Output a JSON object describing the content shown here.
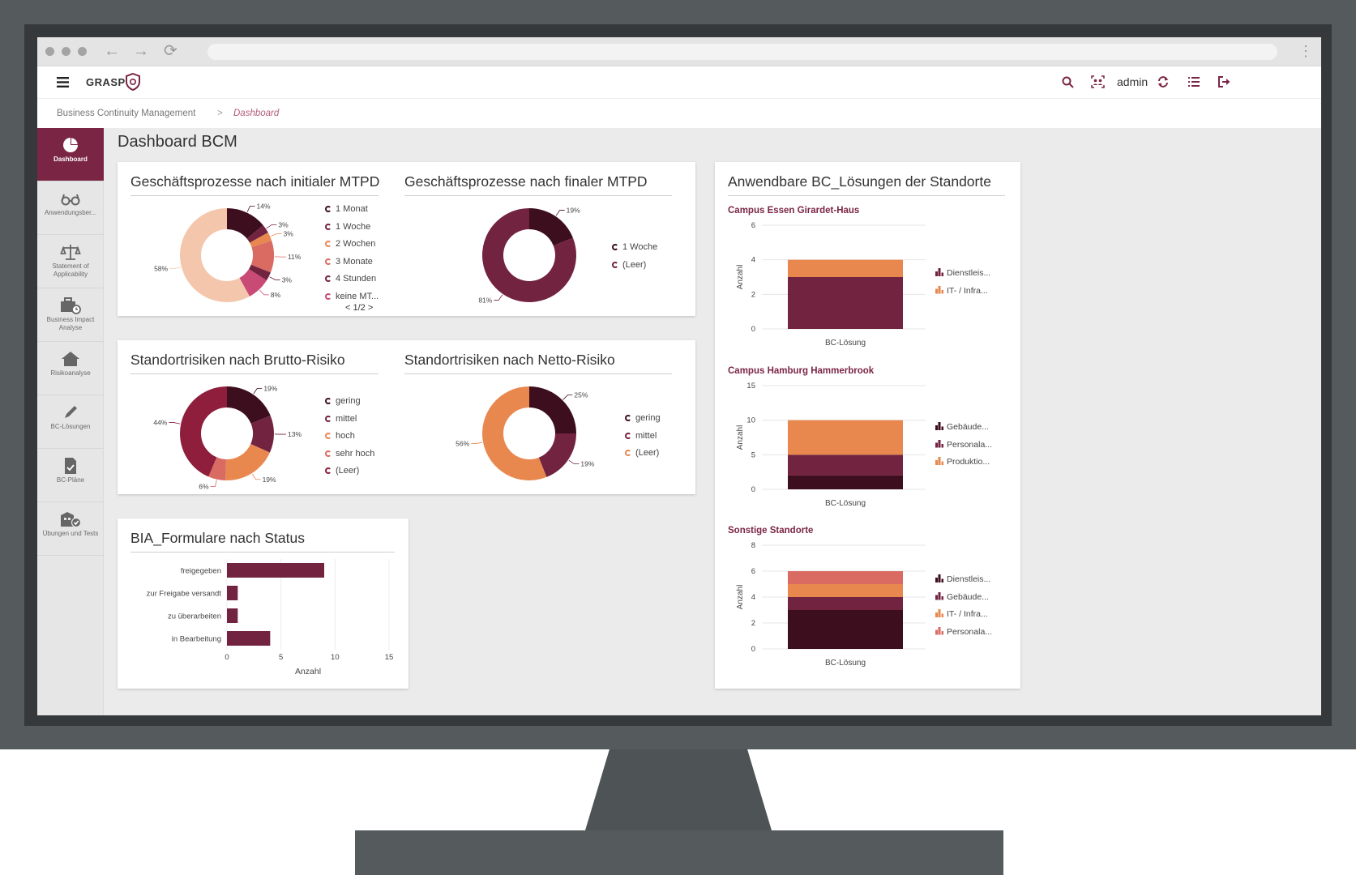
{
  "colors": {
    "c1": "#3d0e1d",
    "c2": "#722340",
    "c3": "#e8884f",
    "c4": "#d96b63",
    "c5": "#c84a75",
    "c6": "#f4c7ad",
    "accent": "#7b2545"
  },
  "app": {
    "logo": "GRASP",
    "user": "admin"
  },
  "icons": {
    "menu": "hamburger-menu-icon",
    "search": "search-icon",
    "users": "users-scan-icon",
    "refresh": "refresh-icon",
    "list": "list-icon",
    "logout": "logout-icon"
  },
  "breadcrumb": {
    "root": "Business Continuity Management",
    "sep": ">",
    "current": "Dashboard"
  },
  "sidebar": {
    "items": [
      {
        "label": "Dashboard",
        "icon": "pie-chart-icon"
      },
      {
        "label": "Anwendungsber...",
        "icon": "glasses-icon"
      },
      {
        "label": "Statement of Applicability",
        "icon": "scale-icon"
      },
      {
        "label": "Business Impact Analyse",
        "icon": "briefcase-clock-icon"
      },
      {
        "label": "Risikoanalyse",
        "icon": "house-icon"
      },
      {
        "label": "BC-Lösungen",
        "icon": "pencil-icon"
      },
      {
        "label": "BC-Pläne",
        "icon": "document-check-icon"
      },
      {
        "label": "Übungen und Tests",
        "icon": "building-check-icon"
      }
    ]
  },
  "page": {
    "title": "Dashboard BCM"
  },
  "donut1": {
    "title": "Geschäftsprozesse nach initialer MTPD",
    "pager": "1/2",
    "slices": [
      {
        "label": "1 Monat",
        "value": 14,
        "text": "14%",
        "color": "#3d0e1d"
      },
      {
        "label": "1 Woche",
        "value": 3,
        "text": "3%",
        "color": "#722340"
      },
      {
        "label": "2 Wochen",
        "value": 3,
        "text": "3%",
        "color": "#e8884f"
      },
      {
        "label": "3 Monate",
        "value": 11,
        "text": "11%",
        "color": "#d96b63"
      },
      {
        "label": "4 Stunden",
        "value": 3,
        "text": "3%",
        "color": "#722340"
      },
      {
        "label": "keine MT...",
        "value": 8,
        "text": "8%",
        "color": "#c84a75"
      },
      {
        "label": "",
        "value": 58,
        "text": "58%",
        "color": "#f4c7ad"
      }
    ]
  },
  "donut2": {
    "title": "Geschäftsprozesse nach finaler MTPD",
    "slices": [
      {
        "label": "1 Woche",
        "value": 19,
        "text": "19%",
        "color": "#3d0e1d"
      },
      {
        "label": "(Leer)",
        "value": 81,
        "text": "81%",
        "color": "#722340"
      }
    ]
  },
  "donut3": {
    "title": "Standortrisiken nach Brutto-Risiko",
    "slices": [
      {
        "label": "gering",
        "value": 19,
        "text": "19%",
        "color": "#3d0e1d"
      },
      {
        "label": "mittel",
        "value": 13,
        "text": "13%",
        "color": "#722340"
      },
      {
        "label": "hoch",
        "value": 19,
        "text": "19%",
        "color": "#e8884f"
      },
      {
        "label": "sehr hoch",
        "value": 6,
        "text": "6%",
        "color": "#d96b63"
      },
      {
        "label": "(Leer)",
        "value": 44,
        "text": "44%",
        "color": "#8f1d3c"
      }
    ]
  },
  "donut4": {
    "title": "Standortrisiken nach Netto-Risiko",
    "slices": [
      {
        "label": "gering",
        "value": 25,
        "text": "25%",
        "color": "#3d0e1d"
      },
      {
        "label": "mittel",
        "value": 19,
        "text": "19%",
        "color": "#722340"
      },
      {
        "label": "(Leer)",
        "value": 56,
        "text": "56%",
        "color": "#e8884f"
      }
    ]
  },
  "bia": {
    "title": "BIA_Formulare nach Status",
    "xlabel": "Anzahl",
    "xticks": [
      "0",
      "5",
      "10",
      "15"
    ],
    "chart_data": {
      "type": "bar",
      "orientation": "horizontal",
      "categories": [
        "freigegeben",
        "zur Freigabe versandt",
        "zu überarbeiten",
        "in Bearbeitung"
      ],
      "values": [
        9,
        1,
        1,
        4
      ],
      "xlim": [
        0,
        15
      ],
      "xlabel": "Anzahl"
    }
  },
  "bc": {
    "title": "Anwendbare BC_Lösungen der Standorte",
    "charts": [
      {
        "name": "Campus Essen Girardet-Haus",
        "ylabel": "Anzahl",
        "xlabel": "BC-Lösung",
        "yticks": [
          "0",
          "2",
          "4",
          "6"
        ],
        "ymax": 6,
        "series": [
          {
            "name": "Dienstleis...",
            "value": 3,
            "color": "#722340"
          },
          {
            "name": "IT- / Infra...",
            "value": 1,
            "color": "#e8884f"
          }
        ]
      },
      {
        "name": "Campus Hamburg Hammerbrook",
        "ylabel": "Anzahl",
        "xlabel": "BC-Lösung",
        "yticks": [
          "0",
          "5",
          "10",
          "15"
        ],
        "ymax": 15,
        "series": [
          {
            "name": "Gebäude...",
            "value": 2,
            "color": "#3d0e1d"
          },
          {
            "name": "Personala...",
            "value": 3,
            "color": "#722340"
          },
          {
            "name": "Produktio...",
            "value": 5,
            "color": "#e8884f"
          }
        ]
      },
      {
        "name": "Sonstige Standorte",
        "ylabel": "Anzahl",
        "xlabel": "BC-Lösung",
        "yticks": [
          "0",
          "2",
          "4",
          "6",
          "8"
        ],
        "ymax": 8,
        "series": [
          {
            "name": "Dienstleis...",
            "value": 3,
            "color": "#3d0e1d"
          },
          {
            "name": "Gebäude...",
            "value": 1,
            "color": "#722340"
          },
          {
            "name": "IT- / Infra...",
            "value": 1,
            "color": "#e8884f"
          },
          {
            "name": "Personala...",
            "value": 1,
            "color": "#d96b63"
          }
        ]
      }
    ]
  }
}
